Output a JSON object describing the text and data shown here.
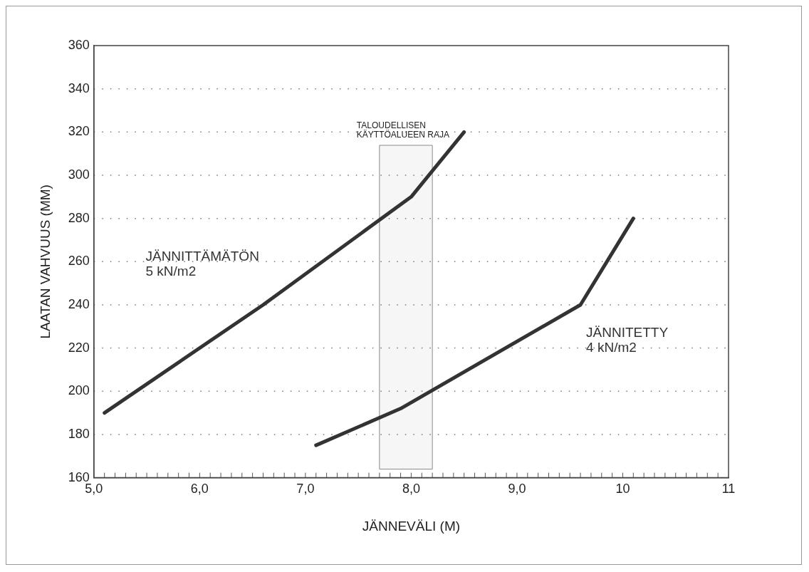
{
  "chart_data": {
    "type": "line",
    "xlabel": "JÄNNEVÄLI (M)",
    "ylabel": "LAATAN VAHVUUS (MM)",
    "series": [
      {
        "name": "JÄNNITTÄMÄTÖN\n5 kN/m2",
        "color": "#333333",
        "x": [
          5.1,
          6.6,
          8.0,
          8.5
        ],
        "values": [
          190,
          240,
          290,
          320
        ]
      },
      {
        "name": "JÄNNITETTY\n4 kN/m2",
        "color": "#333333",
        "x": [
          7.1,
          7.9,
          9.6,
          10.1
        ],
        "values": [
          175,
          192,
          240,
          280
        ]
      }
    ],
    "xlim": [
      5,
      11
    ],
    "xticks": [
      {
        "value": 5,
        "label": "5,0"
      },
      {
        "value": 6,
        "label": "6,0"
      },
      {
        "value": 7,
        "label": "7,0"
      },
      {
        "value": 8,
        "label": "8,0"
      },
      {
        "value": 9,
        "label": "9,0"
      },
      10,
      11
    ],
    "ylim": [
      160,
      360
    ],
    "yticks": [
      160,
      180,
      200,
      220,
      240,
      260,
      280,
      300,
      320,
      340,
      360
    ],
    "bands": [
      {
        "axis": "x",
        "from": 7.7,
        "to": 8.2,
        "label": "TALOUDELLISEN\nKÄYTTÖALUEEN RAJA",
        "color": "#888888"
      }
    ],
    "grid": "y",
    "legend": false,
    "marker": "none",
    "line_style": "solid"
  }
}
